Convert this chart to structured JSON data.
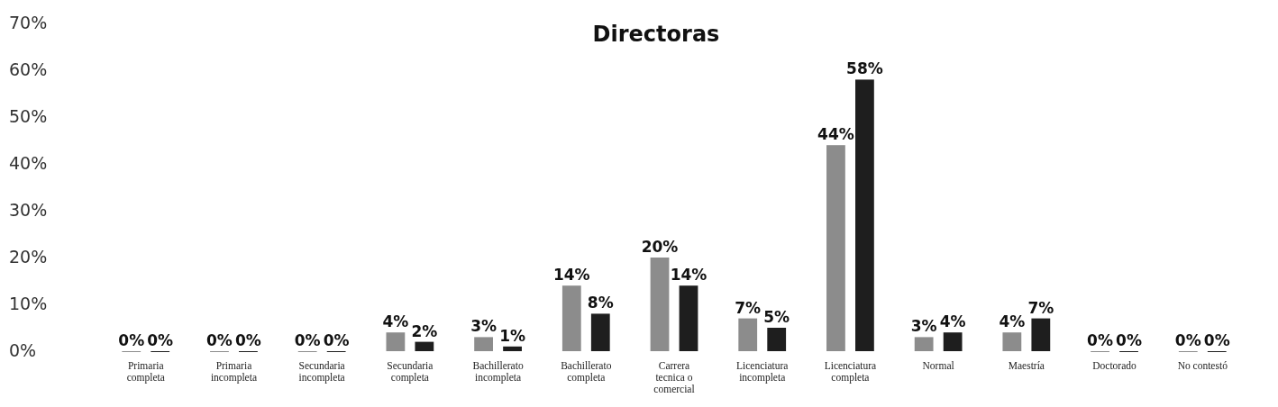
{
  "chart_data": {
    "type": "bar",
    "title": "Directoras",
    "categories": [
      "Primaria completa",
      "Primaria incompleta",
      "Secundaria incompleta",
      "Secundaria completa",
      "Bachillerato incompleta",
      "Bachillerato completa",
      "Carrera tecnica o comercial",
      "Licenciatura incompleta",
      "Licenciatura completa",
      "Normal",
      "Maestría",
      "Doctorado",
      "No contestó"
    ],
    "series": [
      {
        "color": "#8c8c8c",
        "values": [
          0,
          0,
          0,
          4,
          3,
          14,
          20,
          7,
          44,
          3,
          4,
          0,
          0
        ],
        "value_labels": [
          "0%",
          "0%",
          "0%",
          "4%",
          "3%",
          "14%",
          "20%",
          "7%",
          "44%",
          "3%",
          "4%",
          "0%",
          "0%"
        ]
      },
      {
        "color": "#1e1e1e",
        "values": [
          0,
          0,
          0,
          2,
          1,
          8,
          14,
          5,
          58,
          4,
          7,
          0,
          0
        ],
        "value_labels": [
          "0%",
          "0%",
          "0%",
          "2%",
          "1%",
          "8%",
          "14%",
          "5%",
          "58%",
          "4%",
          "7%",
          "0%",
          "0%"
        ]
      }
    ],
    "ylim": [
      0,
      70
    ],
    "yticks": [
      {
        "value": 0,
        "label": "0%"
      },
      {
        "value": 10,
        "label": "10%"
      },
      {
        "value": 20,
        "label": "20%"
      },
      {
        "value": 30,
        "label": "30%"
      },
      {
        "value": 40,
        "label": "40%"
      },
      {
        "value": 50,
        "label": "50%"
      },
      {
        "value": 60,
        "label": "60%"
      },
      {
        "value": 70,
        "label": "70%"
      }
    ],
    "grid": false
  }
}
